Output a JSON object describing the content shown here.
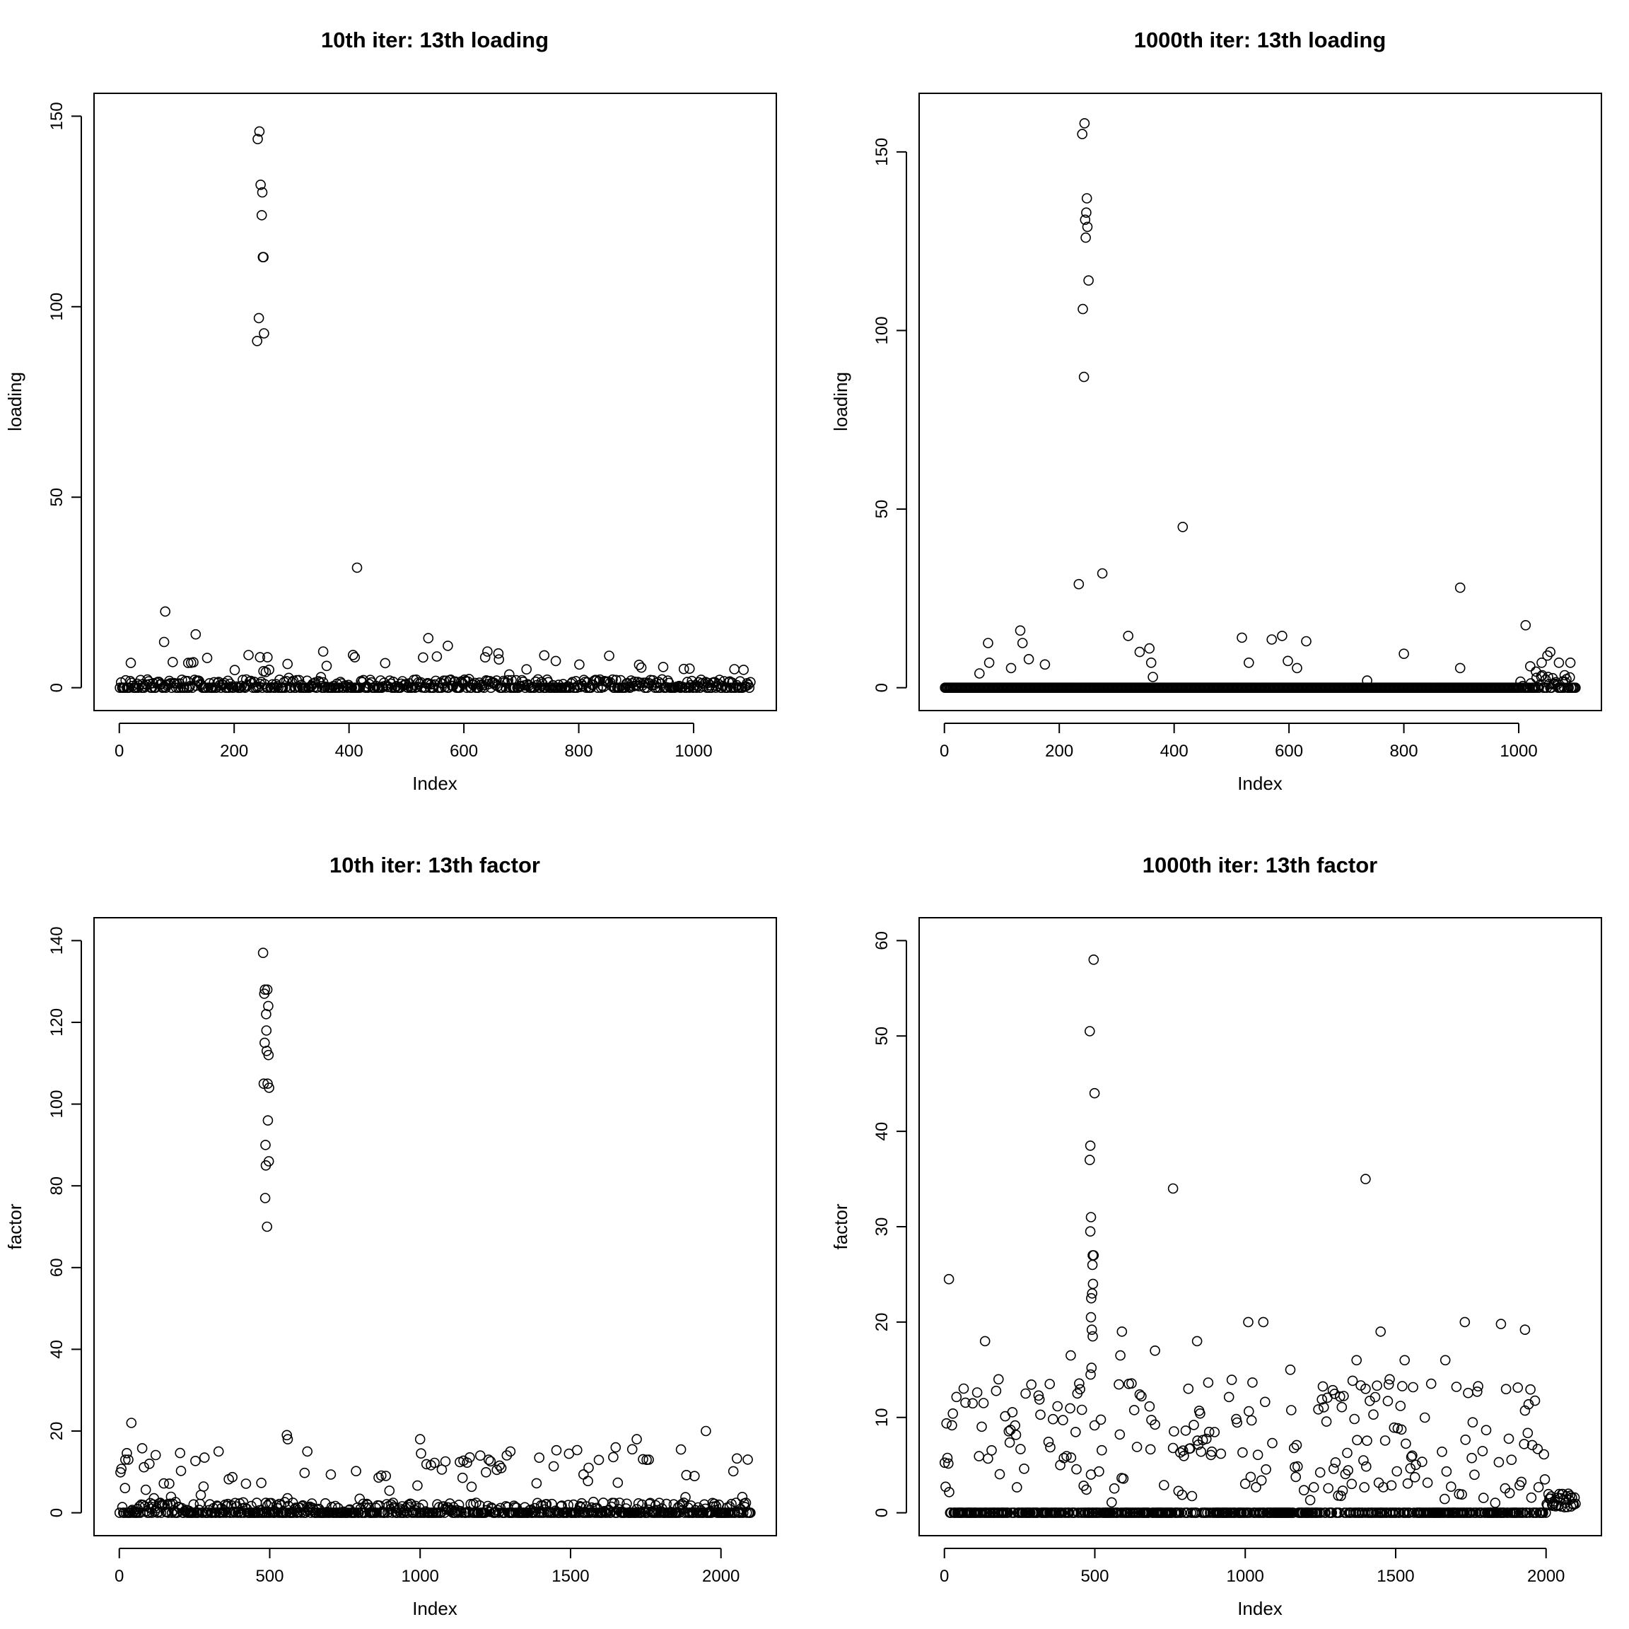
{
  "chart_data": [
    {
      "type": "scatter",
      "title": "10th iter: 13th loading",
      "xlabel": "Index",
      "ylabel": "loading",
      "xlim": [
        0,
        1100
      ],
      "ylim": [
        0,
        150
      ],
      "xticks": [
        0,
        200,
        400,
        600,
        800,
        1000
      ],
      "yticks": [
        0,
        50,
        100,
        150
      ],
      "n": 1100,
      "baseline": 0,
      "outliers": [
        [
          240,
          91
        ],
        [
          241,
          144
        ],
        [
          243,
          97
        ],
        [
          244,
          146
        ],
        [
          246,
          132
        ],
        [
          248,
          124
        ],
        [
          249,
          130
        ],
        [
          250,
          113
        ],
        [
          251,
          113
        ],
        [
          252,
          93
        ],
        [
          414,
          31.5
        ],
        [
          80,
          20
        ],
        [
          133,
          14
        ],
        [
          538,
          13
        ],
        [
          78,
          12
        ],
        [
          572,
          11
        ],
        [
          355,
          9.5
        ],
        [
          641,
          9.5
        ],
        [
          660,
          9
        ],
        [
          20,
          6.5
        ],
        [
          120,
          6.5
        ],
        [
          245,
          8
        ],
        [
          258,
          8
        ],
        [
          410,
          8
        ],
        [
          740,
          8.5
        ],
        [
          760,
          7
        ],
        [
          905,
          6
        ],
        [
          993,
          5
        ]
      ],
      "grid": false,
      "legend": "none"
    },
    {
      "type": "scatter",
      "title": "1000th iter: 13th loading",
      "xlabel": "Index",
      "ylabel": "loading",
      "xlim": [
        0,
        1100
      ],
      "ylim": [
        0,
        160
      ],
      "xticks": [
        0,
        200,
        400,
        600,
        800,
        1000
      ],
      "yticks": [
        0,
        50,
        100,
        150
      ],
      "n": 1100,
      "baseline": 0,
      "outliers": [
        [
          234,
          29
        ],
        [
          240,
          155
        ],
        [
          241,
          106
        ],
        [
          243,
          87
        ],
        [
          244,
          158
        ],
        [
          245,
          131
        ],
        [
          246,
          126
        ],
        [
          247,
          133
        ],
        [
          248,
          137
        ],
        [
          249,
          129
        ],
        [
          251,
          114
        ],
        [
          275,
          32
        ],
        [
          415,
          45
        ],
        [
          898,
          28
        ],
        [
          1012,
          17.5
        ],
        [
          132,
          16
        ],
        [
          320,
          14.5
        ],
        [
          518,
          14
        ],
        [
          570,
          13.5
        ],
        [
          588,
          14.5
        ],
        [
          630,
          13
        ],
        [
          76,
          12.5
        ],
        [
          136,
          12.5
        ],
        [
          357,
          11
        ],
        [
          800,
          9.5
        ],
        [
          61,
          4
        ],
        [
          78,
          7
        ],
        [
          116,
          5.5
        ],
        [
          147,
          8
        ],
        [
          175,
          6.5
        ],
        [
          340,
          10
        ],
        [
          360,
          7
        ],
        [
          363,
          3
        ],
        [
          530,
          7
        ],
        [
          598,
          7.5
        ],
        [
          614,
          5.5
        ],
        [
          736,
          2
        ],
        [
          898,
          5.5
        ],
        [
          1020,
          6
        ],
        [
          1030,
          4.5
        ],
        [
          1040,
          7
        ],
        [
          1050,
          9
        ],
        [
          1055,
          10
        ],
        [
          1070,
          7
        ],
        [
          1080,
          3.5
        ],
        [
          1090,
          7
        ]
      ],
      "grid": false,
      "legend": "none"
    },
    {
      "type": "scatter",
      "title": "10th iter: 13th factor",
      "xlabel": "Index",
      "ylabel": "factor",
      "xlim": [
        0,
        2100
      ],
      "ylim": [
        0,
        140
      ],
      "xticks": [
        0,
        500,
        1000,
        1500,
        2000
      ],
      "yticks": [
        0,
        20,
        40,
        60,
        80,
        100,
        120,
        140
      ],
      "n": 2100,
      "baseline": 0,
      "outliers": [
        [
          478,
          137
        ],
        [
          480,
          105
        ],
        [
          482,
          127
        ],
        [
          483,
          115
        ],
        [
          484,
          128
        ],
        [
          485,
          77
        ],
        [
          486,
          90
        ],
        [
          487,
          85
        ],
        [
          488,
          122
        ],
        [
          489,
          118
        ],
        [
          490,
          113
        ],
        [
          491,
          70
        ],
        [
          492,
          128
        ],
        [
          493,
          105
        ],
        [
          494,
          96
        ],
        [
          495,
          124
        ],
        [
          496,
          112
        ],
        [
          497,
          86
        ],
        [
          498,
          104
        ],
        [
          40,
          22
        ],
        [
          557,
          19
        ],
        [
          560,
          18
        ],
        [
          1000,
          18
        ],
        [
          1720,
          18
        ],
        [
          1950,
          20
        ],
        [
          625,
          15
        ],
        [
          330,
          15
        ],
        [
          1200,
          14
        ],
        [
          1300,
          15
        ],
        [
          1560,
          11
        ],
        [
          1650,
          16
        ],
        [
          1760,
          13
        ],
        [
          20,
          13
        ],
        [
          30,
          13
        ],
        [
          100,
          12
        ]
      ],
      "grid": false,
      "legend": "none"
    },
    {
      "type": "scatter",
      "title": "1000th iter: 13th factor",
      "xlabel": "Index",
      "ylabel": "factor",
      "xlim": [
        0,
        2100
      ],
      "ylim": [
        0,
        60
      ],
      "xticks": [
        0,
        500,
        1000,
        1500,
        2000
      ],
      "yticks": [
        0,
        10,
        20,
        30,
        40,
        50,
        60
      ],
      "n": 2100,
      "baseline": 0,
      "outliers": [
        [
          496,
          58
        ],
        [
          483,
          50.5
        ],
        [
          499,
          44
        ],
        [
          485,
          38.5
        ],
        [
          483,
          37
        ],
        [
          487,
          31
        ],
        [
          496,
          27
        ],
        [
          493,
          27
        ],
        [
          485,
          29.5
        ],
        [
          492,
          26
        ],
        [
          494,
          24
        ],
        [
          491,
          23
        ],
        [
          488,
          22.5
        ],
        [
          487,
          20.5
        ],
        [
          490,
          19.2
        ],
        [
          493,
          18.5
        ],
        [
          486,
          14.5
        ],
        [
          489,
          15.2
        ],
        [
          15,
          24.5
        ],
        [
          760,
          34
        ],
        [
          1400,
          35
        ],
        [
          1010,
          20
        ],
        [
          1060,
          20
        ],
        [
          1730,
          20
        ],
        [
          1850,
          19.8
        ],
        [
          1930,
          19.2
        ],
        [
          700,
          17
        ],
        [
          840,
          18
        ],
        [
          1450,
          19
        ],
        [
          1530,
          16
        ],
        [
          1665,
          16
        ],
        [
          420,
          16.5
        ],
        [
          585,
          16.5
        ],
        [
          590,
          19
        ],
        [
          135,
          18
        ],
        [
          350,
          13.5
        ],
        [
          180,
          14
        ],
        [
          270,
          12.5
        ],
        [
          1150,
          15
        ],
        [
          1370,
          16
        ],
        [
          1400,
          13
        ],
        [
          1480,
          14
        ]
      ],
      "grid": false,
      "legend": "none"
    }
  ]
}
